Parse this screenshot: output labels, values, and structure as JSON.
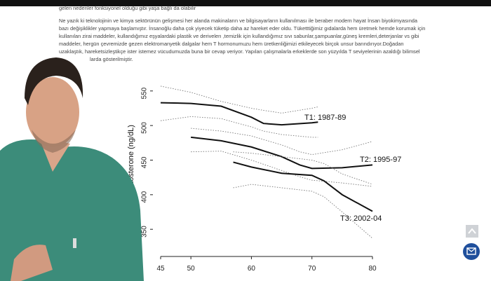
{
  "document": {
    "lines": [
      "gelen nedenler fonksiyonel olduğu gibi yaşa bağlı da olabilir",
      "Ne yazık ki teknolojinin ve kimya sektörünün  gelişmesi  her alanda makinaların ve bilgisayarların kullanılması ile beraber modern hayat  İnsan biyokimyasında",
      "bazı değişiklikler yapmaya başlamıştır. İnsanoğlu daha çok yiyecek tüketip daha az hareket eder oldu. Tüketttiğimiz gıdalarda hem üretmek hemde korumak için",
      "kullanılan zirai maddeler, kullandığımız eşyalardaki plastik ve derivelerı ,temizlik için kullandığımız sıvı sabunlar,şampuanlar,güneş kremleri,deterjanlar vs gibi",
      "maddeler, hergün çevremizde gezen elektromanyetik dalgalar hem T hormonumuzu hem üretkenliğimizi etkileyecek   birçok unsur barındırıyor.Doğadan",
      "uzaklaştık, hareketsizleştikçe ister istemez vücudumuzda buna bir cevap veriyor. Yapılan çalışmalarla  erkeklerde son yüzyılda  T seviyelerinin  azaldığı bilimsel",
      "larda gösterilmiştir."
    ]
  },
  "chart_data": {
    "type": "line",
    "y_label": "Testosterone (ng/dL)",
    "xlim": [
      45,
      80
    ],
    "xticks": [
      45,
      50,
      60,
      70,
      80
    ],
    "ylim": [
      335,
      565
    ],
    "yticks": [
      350,
      400,
      450,
      500,
      550
    ],
    "color": "#111111",
    "series": [
      {
        "name": "T1: 1987-89",
        "x": [
          45,
          50,
          55,
          60,
          62,
          65,
          70,
          71
        ],
        "values": [
          533,
          532,
          528,
          512,
          503,
          501,
          504,
          505
        ],
        "upper": [
          557,
          548,
          535,
          525,
          522,
          518,
          525,
          527
        ],
        "lower": [
          507,
          513,
          510,
          498,
          492,
          487,
          483,
          483
        ]
      },
      {
        "name": "T2: 1995-97",
        "x": [
          50,
          55,
          60,
          65,
          68,
          70,
          75,
          80
        ],
        "values": [
          483,
          478,
          469,
          455,
          443,
          438,
          439,
          443
        ],
        "upper": [
          496,
          492,
          485,
          472,
          462,
          458,
          465,
          477
        ],
        "lower": [
          462,
          463,
          450,
          435,
          426,
          421,
          417,
          412
        ]
      },
      {
        "name": "T3: 2002-04",
        "x": [
          57,
          60,
          65,
          70,
          72,
          75,
          80
        ],
        "values": [
          447,
          440,
          431,
          428,
          420,
          400,
          376
        ],
        "upper": [
          462,
          460,
          455,
          450,
          445,
          430,
          415
        ],
        "lower": [
          410,
          415,
          410,
          405,
          397,
          375,
          337
        ]
      }
    ]
  }
}
